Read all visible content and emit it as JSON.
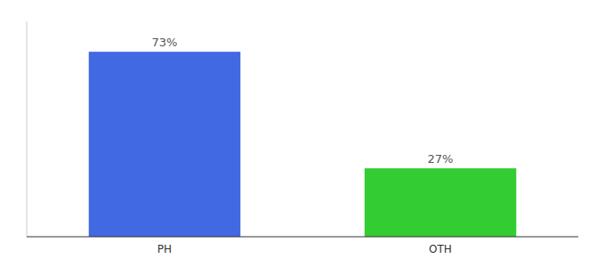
{
  "chart_data": {
    "type": "bar",
    "categories": [
      "PH",
      "OTH"
    ],
    "values": [
      73,
      27
    ],
    "value_labels": [
      "73%",
      "27%"
    ],
    "colors": [
      "#4169e1",
      "#33cc33"
    ],
    "ylim": [
      0,
      85
    ],
    "data_labels": true,
    "tick_labels": "x",
    "grid": false
  }
}
